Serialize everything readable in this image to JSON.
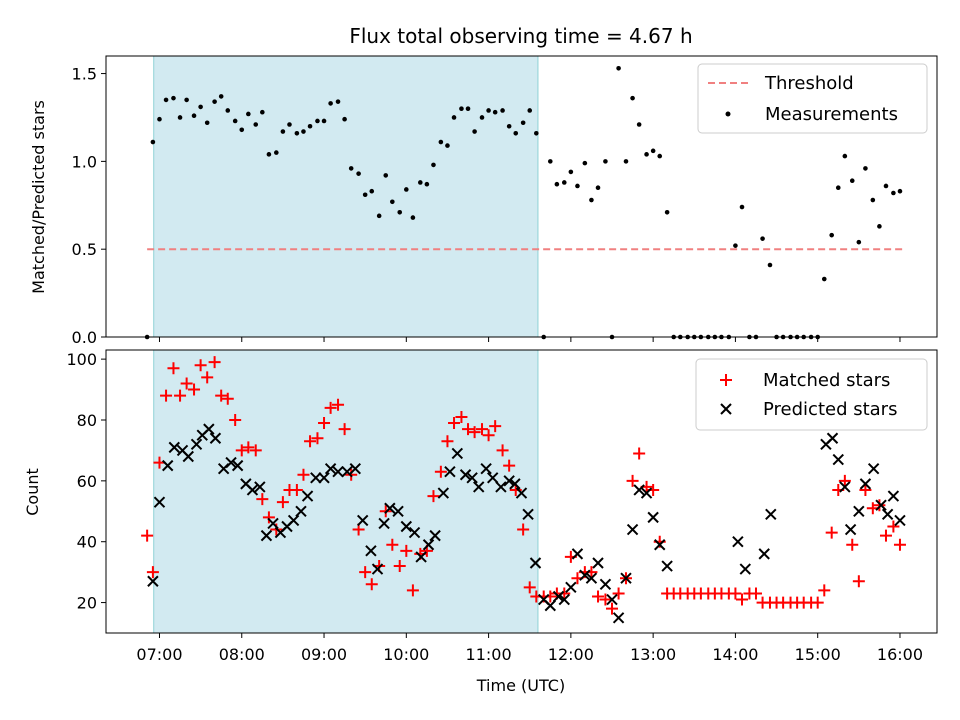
{
  "chart_data": [
    {
      "type": "scatter",
      "title": "Flux total observing time = 4.67 h",
      "ylabel": "Matched/Predicted stars",
      "xlabel": "",
      "ylim": [
        0,
        1.6
      ],
      "yticks": [
        0.0,
        0.5,
        1.0,
        1.5
      ],
      "ytick_labels": [
        "0.0",
        "0.5",
        "1.0",
        "1.5"
      ],
      "xlim": [
        6.35,
        16.45
      ],
      "highlight_band": {
        "x0": 6.93,
        "x1": 11.6,
        "color": "#add8e6"
      },
      "legend": {
        "position": "top-right",
        "entries": [
          "Threshold",
          "Measurements"
        ]
      },
      "series": [
        {
          "name": "Threshold",
          "kind": "line",
          "style": "dashed",
          "color": "#f08080",
          "x": [
            6.85,
            16.05
          ],
          "y": [
            0.5,
            0.5
          ]
        },
        {
          "name": "Measurements",
          "kind": "points",
          "color": "#000000",
          "x": [
            6.85,
            6.92,
            7.0,
            7.08,
            7.17,
            7.25,
            7.33,
            7.42,
            7.5,
            7.58,
            7.67,
            7.75,
            7.83,
            7.92,
            8.0,
            8.08,
            8.17,
            8.25,
            8.33,
            8.42,
            8.5,
            8.58,
            8.67,
            8.75,
            8.83,
            8.92,
            9.0,
            9.08,
            9.17,
            9.25,
            9.33,
            9.42,
            9.5,
            9.58,
            9.67,
            9.75,
            9.83,
            9.92,
            10.0,
            10.08,
            10.17,
            10.25,
            10.33,
            10.42,
            10.5,
            10.58,
            10.67,
            10.75,
            10.83,
            10.92,
            11.0,
            11.08,
            11.17,
            11.25,
            11.33,
            11.42,
            11.5,
            11.58,
            11.67,
            11.75,
            11.83,
            11.92,
            12.0,
            12.08,
            12.17,
            12.25,
            12.33,
            12.42,
            12.5,
            12.58,
            12.67,
            12.75,
            12.83,
            12.92,
            13.0,
            13.08,
            13.17,
            13.25,
            13.33,
            13.42,
            13.5,
            13.58,
            13.67,
            13.75,
            13.83,
            13.92,
            14.0,
            14.08,
            14.17,
            14.25,
            14.33,
            14.42,
            14.5,
            14.58,
            14.67,
            14.75,
            14.83,
            14.92,
            15.0,
            15.08,
            15.17,
            15.25,
            15.33,
            15.42,
            15.5,
            15.58,
            15.67,
            15.75,
            15.83,
            15.92,
            16.0
          ],
          "y": [
            0.0,
            1.11,
            1.24,
            1.35,
            1.36,
            1.25,
            1.35,
            1.26,
            1.31,
            1.22,
            1.34,
            1.37,
            1.29,
            1.23,
            1.18,
            1.27,
            1.21,
            1.28,
            1.04,
            1.05,
            1.17,
            1.21,
            1.16,
            1.17,
            1.2,
            1.23,
            1.23,
            1.33,
            1.34,
            1.24,
            0.96,
            0.93,
            0.81,
            0.83,
            0.69,
            0.92,
            0.77,
            0.71,
            0.84,
            0.68,
            0.88,
            0.87,
            0.98,
            1.11,
            1.09,
            1.25,
            1.3,
            1.3,
            1.17,
            1.25,
            1.29,
            1.28,
            1.29,
            1.2,
            1.16,
            1.22,
            1.29,
            1.16,
            0.0,
            1.0,
            0.87,
            0.88,
            0.94,
            0.86,
            0.99,
            0.78,
            0.85,
            1.0,
            0.0,
            1.53,
            1.0,
            1.36,
            1.21,
            1.04,
            1.06,
            1.03,
            0.71,
            0.0,
            0.0,
            0.0,
            0.0,
            0.0,
            0.0,
            0.0,
            0.0,
            0.0,
            0.52,
            0.74,
            0.0,
            0.0,
            0.56,
            0.41,
            0.0,
            0.0,
            0.0,
            0.0,
            0.0,
            0.0,
            0.0,
            0.33,
            0.58,
            0.85,
            1.03,
            0.89,
            0.54,
            0.96,
            0.78,
            0.63,
            0.86,
            0.82,
            0.83
          ]
        }
      ]
    },
    {
      "type": "scatter",
      "title": "",
      "ylabel": "Count",
      "xlabel": "Time (UTC)",
      "ylim": [
        10,
        103
      ],
      "yticks": [
        20,
        40,
        60,
        80,
        100
      ],
      "ytick_labels": [
        "20",
        "40",
        "60",
        "80",
        "100"
      ],
      "xlim": [
        6.35,
        16.45
      ],
      "xticks": [
        7,
        8,
        9,
        10,
        11,
        12,
        13,
        14,
        15,
        16
      ],
      "xtick_labels": [
        "07:00",
        "08:00",
        "09:00",
        "10:00",
        "11:00",
        "12:00",
        "13:00",
        "14:00",
        "15:00",
        "16:00"
      ],
      "highlight_band": {
        "x0": 6.93,
        "x1": 11.6,
        "color": "#add8e6"
      },
      "legend": {
        "position": "top-right",
        "entries": [
          "Matched stars",
          "Predicted stars"
        ]
      },
      "series": [
        {
          "name": "Matched stars",
          "marker": "plus",
          "color": "#ff0000",
          "x": [
            6.85,
            6.92,
            7.0,
            7.08,
            7.17,
            7.25,
            7.33,
            7.42,
            7.5,
            7.58,
            7.67,
            7.75,
            7.83,
            7.92,
            8.0,
            8.08,
            8.17,
            8.25,
            8.33,
            8.42,
            8.5,
            8.58,
            8.67,
            8.75,
            8.83,
            8.92,
            9.0,
            9.08,
            9.17,
            9.25,
            9.33,
            9.42,
            9.5,
            9.58,
            9.67,
            9.75,
            9.83,
            9.92,
            10.0,
            10.08,
            10.17,
            10.25,
            10.33,
            10.42,
            10.5,
            10.58,
            10.67,
            10.75,
            10.83,
            10.92,
            11.0,
            11.08,
            11.17,
            11.25,
            11.33,
            11.42,
            11.5,
            11.58,
            11.67,
            11.75,
            11.83,
            11.92,
            12.0,
            12.08,
            12.17,
            12.25,
            12.33,
            12.42,
            12.5,
            12.58,
            12.67,
            12.75,
            12.83,
            12.92,
            13.0,
            13.08,
            13.17,
            13.25,
            13.33,
            13.42,
            13.5,
            13.58,
            13.67,
            13.75,
            13.83,
            13.92,
            14.0,
            14.08,
            14.17,
            14.25,
            14.33,
            14.42,
            14.5,
            14.58,
            14.67,
            14.75,
            14.83,
            14.92,
            15.0,
            15.08,
            15.17,
            15.25,
            15.33,
            15.42,
            15.5,
            15.58,
            15.67,
            15.75,
            15.83,
            15.92,
            16.0
          ],
          "y": [
            42,
            30,
            66,
            88,
            97,
            88,
            92,
            90,
            98,
            94,
            99,
            88,
            87,
            80,
            70,
            71,
            70,
            54,
            48,
            44,
            53,
            57,
            57,
            62,
            73,
            74,
            79,
            84,
            85,
            77,
            62,
            44,
            30,
            26,
            32,
            50,
            39,
            32,
            37,
            24,
            36,
            37,
            55,
            63,
            73,
            79,
            81,
            77,
            76,
            77,
            75,
            78,
            70,
            65,
            57,
            44,
            25,
            22,
            22,
            22,
            23,
            23,
            35,
            28,
            30,
            30,
            22,
            21,
            18,
            23,
            28,
            60,
            69,
            58,
            57,
            40,
            23,
            23,
            23,
            23,
            23,
            23,
            23,
            23,
            23,
            23,
            23,
            21,
            23,
            23,
            20,
            20,
            20,
            20,
            20,
            20,
            20,
            20,
            20,
            24,
            43,
            57,
            60,
            39,
            27,
            57,
            51,
            52,
            42,
            45,
            39
          ]
        },
        {
          "name": "Predicted stars",
          "marker": "x",
          "color": "#000000",
          "x": [
            6.92,
            7.0,
            7.1,
            7.18,
            7.28,
            7.35,
            7.45,
            7.52,
            7.6,
            7.68,
            7.78,
            7.87,
            7.95,
            8.05,
            8.13,
            8.22,
            8.3,
            8.38,
            8.47,
            8.55,
            8.63,
            8.72,
            8.8,
            8.9,
            9.0,
            9.08,
            9.17,
            9.28,
            9.38,
            9.47,
            9.57,
            9.65,
            9.73,
            9.8,
            9.9,
            10.0,
            10.1,
            10.18,
            10.27,
            10.35,
            10.45,
            10.53,
            10.62,
            10.72,
            10.8,
            10.88,
            10.97,
            11.05,
            11.15,
            11.25,
            11.32,
            11.4,
            11.48,
            11.57,
            11.67,
            11.75,
            11.85,
            11.92,
            12.0,
            12.08,
            12.17,
            12.25,
            12.33,
            12.42,
            12.5,
            12.58,
            12.67,
            12.75,
            12.83,
            12.92,
            13.0,
            13.08,
            13.17,
            14.03,
            14.12,
            14.35,
            14.43,
            15.1,
            15.18,
            15.25,
            15.33,
            15.4,
            15.5,
            15.58,
            15.68,
            15.77,
            15.85,
            15.92,
            16.0
          ],
          "y": [
            27,
            53,
            65,
            71,
            70,
            68,
            72,
            75,
            77,
            74,
            64,
            66,
            65,
            59,
            57,
            58,
            42,
            46,
            43,
            45,
            47,
            50,
            55,
            61,
            61,
            64,
            63,
            63,
            64,
            47,
            37,
            31,
            46,
            51,
            50,
            45,
            43,
            35,
            39,
            42,
            56,
            63,
            69,
            62,
            61,
            58,
            64,
            61,
            58,
            60,
            59,
            56,
            49,
            33,
            21,
            19,
            22,
            21,
            25,
            36,
            29,
            28,
            33,
            26,
            21,
            15,
            28,
            44,
            57,
            56,
            48,
            39,
            32,
            40,
            31,
            36,
            49,
            72,
            74,
            67,
            58,
            44,
            50,
            59,
            64,
            52,
            49,
            55,
            47
          ]
        }
      ]
    }
  ]
}
